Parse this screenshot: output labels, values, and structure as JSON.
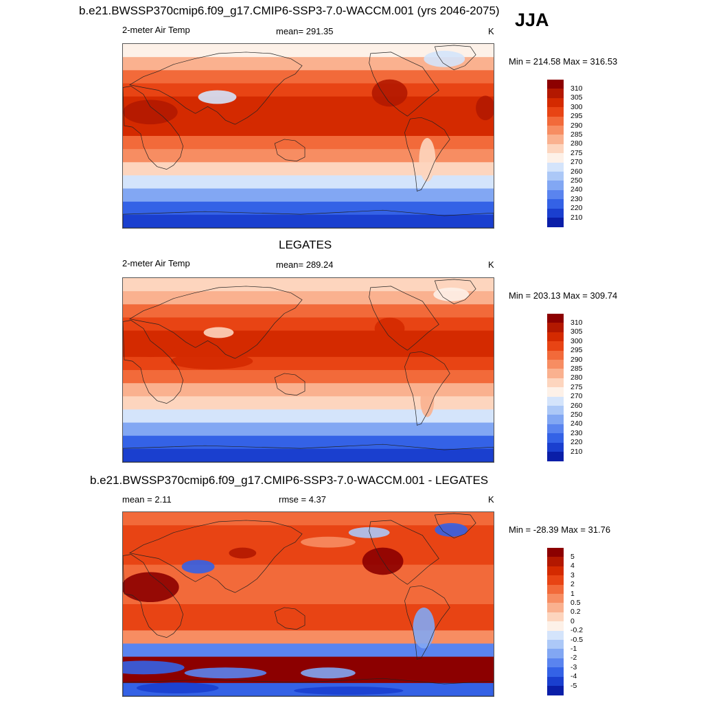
{
  "season": "JJA",
  "panels": [
    {
      "title": "b.e21.BWSSP370cmip6.f09_g17.CMIP6-SSP3-7.0-WACCM.001 (yrs 2046-2075)",
      "left_label": "2-meter Air Temp",
      "center_label": "mean= 291.35",
      "unit": "K",
      "minmax": "Min = 214.58 Max = 316.53"
    },
    {
      "title": "LEGATES",
      "left_label": "2-meter Air Temp",
      "center_label": "mean= 289.24",
      "unit": "K",
      "minmax": "Min = 203.13 Max = 309.74"
    },
    {
      "title": "b.e21.BWSSP370cmip6.f09_g17.CMIP6-SSP3-7.0-WACCM.001 - LEGATES",
      "left_label": "mean =   2.11",
      "center_label": "rmse =   4.37",
      "unit": "K",
      "minmax": "Min = -28.39 Max =  31.76"
    }
  ],
  "chart_data": [
    {
      "type": "heatmap",
      "title": "b.e21.BWSSP370cmip6.f09_g17.CMIP6-SSP3-7.0-WACCM.001 (yrs 2046-2075)",
      "variable": "2-meter Air Temp",
      "unit": "K",
      "mean": 291.35,
      "min": 214.58,
      "max": 316.53,
      "zonal_bands_top_to_bottom": [
        272,
        280,
        290,
        297,
        303,
        304,
        300,
        294,
        286,
        277,
        265,
        248,
        228,
        218
      ],
      "colorbar_levels": [
        "310",
        "305",
        "300",
        "295",
        "290",
        "285",
        "280",
        "275",
        "270",
        "260",
        "250",
        "240",
        "230",
        "220",
        "210"
      ],
      "colorbar_colors": [
        "#8c0000",
        "#b31800",
        "#d42a00",
        "#e84414",
        "#f26a3a",
        "#f78d62",
        "#fab18f",
        "#fdd5be",
        "#fdf1e8",
        "#d4e4fb",
        "#acc8f7",
        "#82a7f3",
        "#5a84ef",
        "#3462e6",
        "#1a3fcf",
        "#0a1ea8"
      ]
    },
    {
      "type": "heatmap",
      "title": "LEGATES",
      "variable": "2-meter Air Temp",
      "unit": "K",
      "mean": 289.24,
      "min": 203.13,
      "max": 309.74,
      "zonal_bands_top_to_bottom": [
        276,
        283,
        290,
        296,
        300,
        301,
        298,
        292,
        284,
        276,
        262,
        245,
        226,
        214
      ],
      "colorbar_levels": [
        "310",
        "305",
        "300",
        "295",
        "290",
        "285",
        "280",
        "275",
        "270",
        "260",
        "250",
        "240",
        "230",
        "220",
        "210"
      ],
      "colorbar_colors": [
        "#8c0000",
        "#b31800",
        "#d42a00",
        "#e84414",
        "#f26a3a",
        "#f78d62",
        "#fab18f",
        "#fdd5be",
        "#fdf1e8",
        "#d4e4fb",
        "#acc8f7",
        "#82a7f3",
        "#5a84ef",
        "#3462e6",
        "#1a3fcf",
        "#0a1ea8"
      ]
    },
    {
      "type": "heatmap",
      "title": "b.e21.BWSSP370cmip6.f09_g17.CMIP6-SSP3-7.0-WACCM.001 - LEGATES",
      "unit": "K",
      "mean": 2.11,
      "rmse": 4.37,
      "min": -28.39,
      "max": 31.76,
      "zonal_bands_top_to_bottom": [
        1,
        2,
        2.5,
        2,
        1.5,
        1.5,
        1.5,
        2,
        2,
        0.5,
        -3,
        5,
        5,
        -4
      ],
      "colorbar_levels": [
        "5",
        "4",
        "3",
        "2",
        "1",
        "0.5",
        "0.2",
        "0",
        "-0.2",
        "-0.5",
        "-1",
        "-2",
        "-3",
        "-4",
        "-5"
      ],
      "colorbar_colors": [
        "#8c0000",
        "#b31800",
        "#d42a00",
        "#e84414",
        "#f26a3a",
        "#f78d62",
        "#fab18f",
        "#fdd5be",
        "#fdf1e8",
        "#d4e4fb",
        "#acc8f7",
        "#82a7f3",
        "#5a84ef",
        "#3462e6",
        "#1a3fcf",
        "#0a1ea8"
      ]
    }
  ]
}
